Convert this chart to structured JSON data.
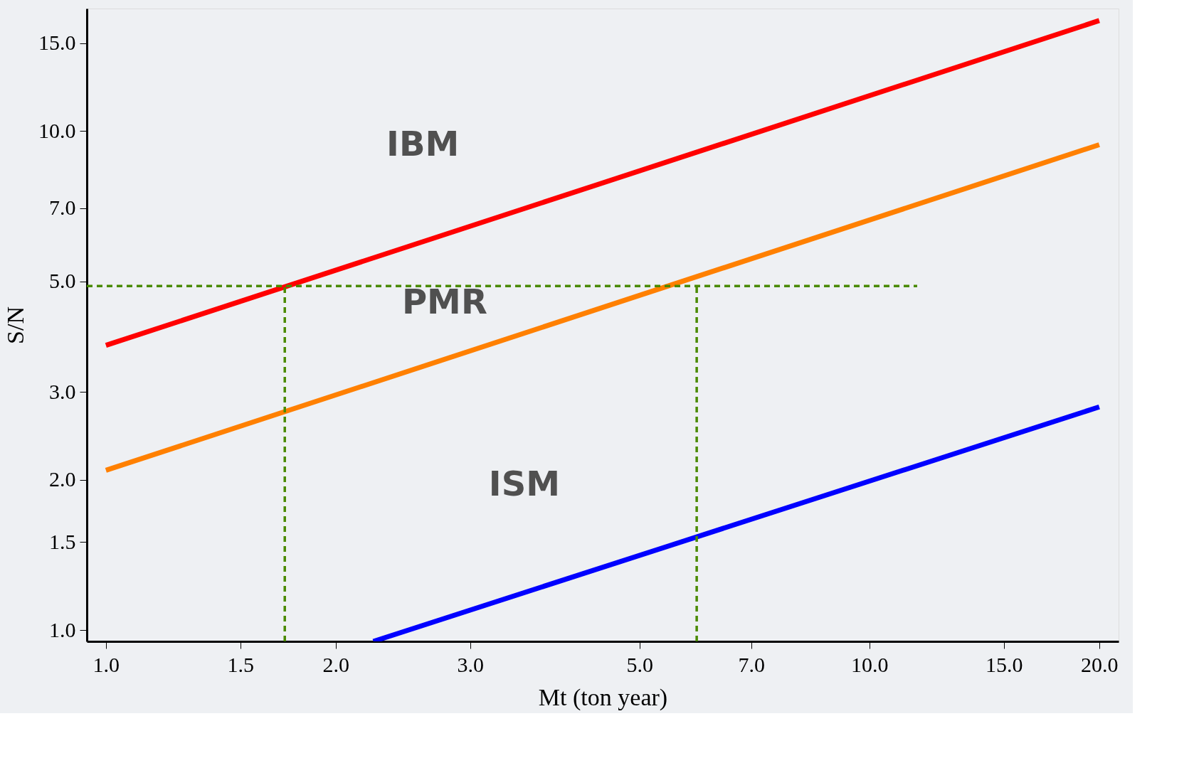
{
  "chart_data": {
    "type": "line",
    "xlabel": "Mt (ton year)",
    "ylabel": "S/N",
    "log": "xy",
    "grid": false,
    "line_style": "solid",
    "marker": "none",
    "xlim": [
      0.944,
      21.2
    ],
    "ylim": [
      0.949,
      17.6
    ],
    "xticks": [
      {
        "value": 1,
        "label": "1.0"
      },
      {
        "value": 1.5,
        "label": "1.5"
      },
      {
        "value": 2,
        "label": "2.0"
      },
      {
        "value": 3,
        "label": "3.0"
      },
      {
        "value": 5,
        "label": "5.0"
      },
      {
        "value": 7,
        "label": "7.0"
      },
      {
        "value": 10,
        "label": "10.0"
      },
      {
        "value": 15,
        "label": "15.0"
      },
      {
        "value": 20,
        "label": "20.0"
      }
    ],
    "yticks": [
      {
        "value": 1,
        "label": "1.0"
      },
      {
        "value": 1.5,
        "label": "1.5"
      },
      {
        "value": 2,
        "label": "2.0"
      },
      {
        "value": 3,
        "label": "3.0"
      },
      {
        "value": 5,
        "label": "5.0"
      },
      {
        "value": 7,
        "label": "7.0"
      },
      {
        "value": 10,
        "label": "10.0"
      },
      {
        "value": 15,
        "label": "15.0"
      }
    ],
    "series": [
      {
        "name": "IBM",
        "color": "#ff0000",
        "x": [
          1,
          20
        ],
        "values": [
          3.72,
          16.65
        ]
      },
      {
        "name": "PMR",
        "color": "#ff8000",
        "x": [
          1,
          20
        ],
        "values": [
          2.09,
          9.39
        ]
      },
      {
        "name": "ISM",
        "color": "#0000ff",
        "x": [
          2.24,
          20
        ],
        "values": [
          0.949,
          2.8
        ]
      },
      {
        "color": "#4a8a00",
        "line_style": "dashed",
        "x": [
          0.944,
          11.55
        ],
        "values": [
          4.89,
          4.89
        ]
      },
      {
        "color": "#4a8a00",
        "line_style": "dashed",
        "x": [
          1.715,
          1.715
        ],
        "values": [
          0.949,
          4.89
        ]
      },
      {
        "color": "#4a8a00",
        "line_style": "dashed",
        "x": [
          5.94,
          5.94
        ],
        "values": [
          0.949,
          4.89
        ]
      }
    ]
  }
}
